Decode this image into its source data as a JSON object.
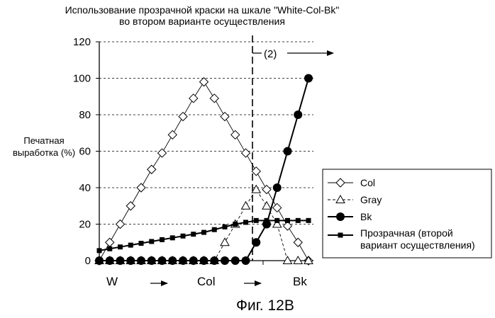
{
  "chart_data": {
    "type": "line",
    "title": [
      "Использование прозрачной краски на шкале  \"White-Col-Bk\"",
      "во втором варианте осуществления"
    ],
    "ylabel": [
      "Печатная",
      "выработка (%)"
    ],
    "xlabel": "",
    "ylim": [
      0,
      120
    ],
    "yticks": [
      0,
      20,
      40,
      60,
      80,
      100,
      120
    ],
    "grid": "horizontal-dashed",
    "x_categories": [
      "W",
      "Col",
      "Bk"
    ],
    "x": [
      0,
      1,
      2,
      3,
      4,
      5,
      6,
      7,
      8,
      9,
      10,
      11,
      12,
      13,
      14,
      15,
      16,
      17,
      18,
      19,
      20
    ],
    "divider_x": 14,
    "annotation": "(2)",
    "legend_position": "right",
    "series": [
      {
        "name": "Col",
        "marker": "diamond",
        "line": "solid-thin",
        "values": [
          0,
          10,
          20,
          30,
          40,
          50,
          59,
          69,
          79,
          89,
          98,
          89,
          79,
          69,
          59,
          49,
          39,
          29,
          19,
          10,
          0
        ]
      },
      {
        "name": "Gray",
        "marker": "triangle",
        "line": "dashed",
        "values": [
          0,
          0,
          0,
          0,
          0,
          0,
          0,
          0,
          0,
          0,
          0,
          0,
          10,
          20,
          30,
          39,
          30,
          20,
          0,
          0,
          0
        ]
      },
      {
        "name": "Bk",
        "marker": "circle",
        "line": "solid-thick",
        "values": [
          0,
          0,
          0,
          0,
          0,
          0,
          0,
          0,
          0,
          0,
          0,
          0,
          0,
          0,
          0,
          10,
          20,
          40,
          60,
          80,
          100
        ]
      },
      {
        "name": "Прозрачная (второй вариант осуществления)",
        "marker": "square",
        "line": "solid-thick",
        "values": [
          5.5,
          6.5,
          7.5,
          8.5,
          9.5,
          10.5,
          11.5,
          12.5,
          13.5,
          14.5,
          15.5,
          17,
          18.5,
          20,
          21,
          22,
          22,
          22,
          22,
          22,
          22
        ]
      }
    ],
    "caption": "Фиг. 12B"
  }
}
